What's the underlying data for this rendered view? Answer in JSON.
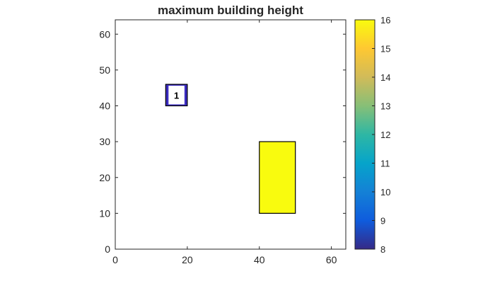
{
  "chart_data": {
    "type": "heatmap",
    "title": "maximum building height",
    "xlim": [
      0,
      64
    ],
    "ylim": [
      0,
      64
    ],
    "xticks": [
      0,
      20,
      40,
      60
    ],
    "yticks": [
      0,
      10,
      20,
      30,
      40,
      50,
      60
    ],
    "grid": false,
    "buildings": [
      {
        "label": "1",
        "x": [
          14,
          20
        ],
        "y": [
          40,
          46
        ],
        "height": 8,
        "fill": "#ffffff",
        "edge": "#3a2bbf",
        "hollow": true
      },
      {
        "label": "",
        "x": [
          40,
          50
        ],
        "y": [
          10,
          30
        ],
        "height": 16,
        "fill": "#f9fb0e",
        "edge": "#000000",
        "hollow": false
      }
    ],
    "colorbar": {
      "min": 8,
      "max": 16,
      "ticks": [
        8,
        9,
        10,
        11,
        12,
        13,
        14,
        15,
        16
      ],
      "colormap": "parula",
      "stops": [
        "#352a87",
        "#0f5cdd",
        "#1481d6",
        "#06a4ca",
        "#2eb7a4",
        "#87bf77",
        "#d1bb59",
        "#fec832",
        "#f9fb0e"
      ]
    }
  }
}
